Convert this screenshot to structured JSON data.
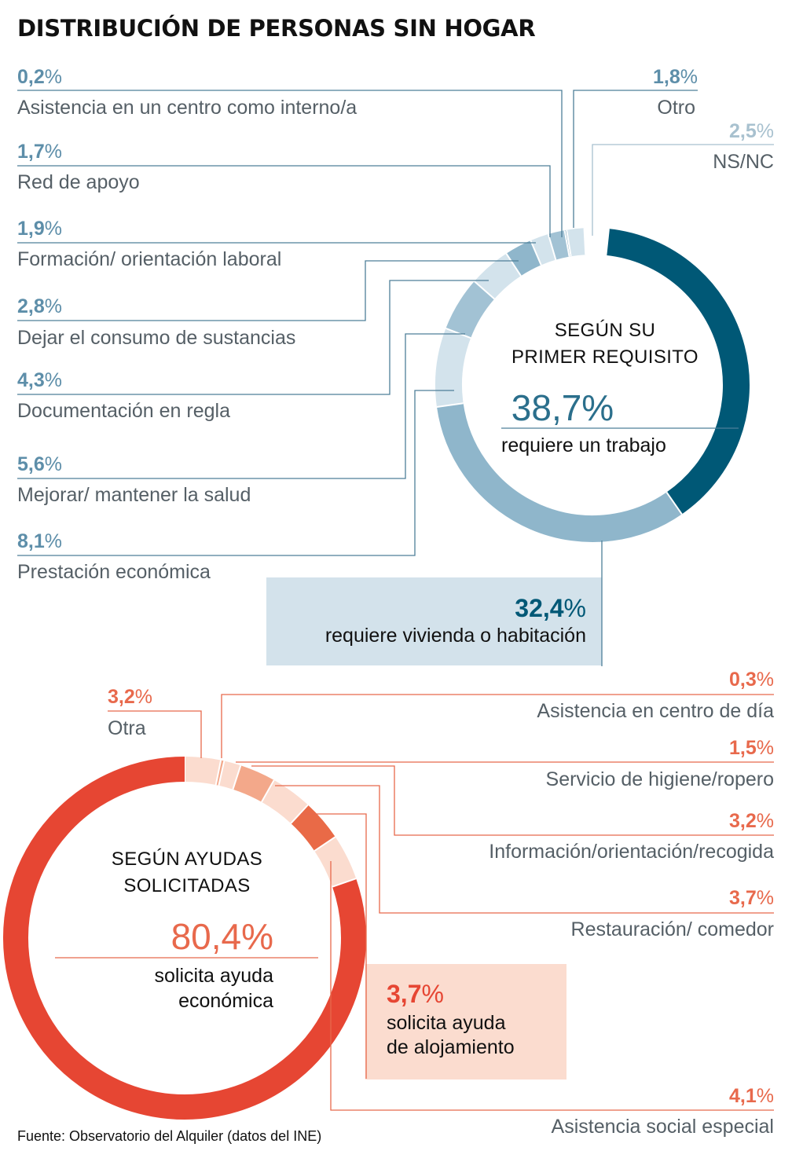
{
  "title": "DISTRIBUCIÓN DE PERSONAS SIN HOGAR",
  "source": "Fuente: Observatorio del Alquiler (datos del INE)",
  "chart_data": [
    {
      "type": "pie",
      "donut": true,
      "center": {
        "title_lines": [
          "SEGÚN SU",
          "PRIMER REQUISITO"
        ],
        "value": "38,7%",
        "caption": "requiere un trabajo"
      },
      "highlight": {
        "value": "32,4%",
        "caption": "requiere vivienda o habitación"
      },
      "slices": [
        {
          "label": "requiere un trabajo",
          "value": 38.7,
          "color": "#005876"
        },
        {
          "label": "requiere vivienda o habitación",
          "value": 32.4,
          "color": "#8fb6cb"
        },
        {
          "label": "Prestación económica",
          "value": 8.1,
          "color": "#d3e3ec"
        },
        {
          "label": "Mejorar/ mantener la salud",
          "value": 5.6,
          "color": "#a2c2d4"
        },
        {
          "label": "Documentación en regla",
          "value": 4.3,
          "color": "#d3e3ec"
        },
        {
          "label": "Dejar el consumo de sustancias",
          "value": 2.8,
          "color": "#8fb6cb"
        },
        {
          "label": "Formación/ orientación laboral",
          "value": 1.9,
          "color": "#d3e3ec"
        },
        {
          "label": "Red de apoyo",
          "value": 1.7,
          "color": "#a2c2d4"
        },
        {
          "label": "Asistencia en un centro como interno/a",
          "value": 0.2,
          "color": "#5d8ea9"
        },
        {
          "label": "Otro",
          "value": 1.8,
          "color": "#d3e3ec"
        },
        {
          "label": "NS/NC",
          "value": 2.5,
          "color": "#ffffff"
        }
      ],
      "labels": [
        {
          "pct": "0,2",
          "text": "Asistencia en un centro como interno/a"
        },
        {
          "pct": "1,7",
          "text": "Red de apoyo"
        },
        {
          "pct": "1,9",
          "text": "Formación/ orientación laboral"
        },
        {
          "pct": "2,8",
          "text": "Dejar el consumo de sustancias"
        },
        {
          "pct": "4,3",
          "text": "Documentación en regla"
        },
        {
          "pct": "5,6",
          "text": "Mejorar/ mantener la salud"
        },
        {
          "pct": "8,1",
          "text": "Prestación económica"
        },
        {
          "pct": "1,8",
          "text": "Otro"
        },
        {
          "pct": "2,5",
          "text": "NS/NC"
        }
      ],
      "pct_color": "#5d8ea9",
      "nsnc_color": "#a8c1cf"
    },
    {
      "type": "pie",
      "donut": true,
      "center": {
        "title_lines": [
          "SEGÚN AYUDAS",
          "SOLICITADAS"
        ],
        "value": "80,4%",
        "caption_lines": [
          "solicita ayuda",
          "económica"
        ]
      },
      "highlight": {
        "value": "3,7%",
        "caption_lines": [
          "solicita ayuda",
          "de alojamiento"
        ]
      },
      "slices": [
        {
          "label": "Otra",
          "value": 3.2,
          "color": "#fbdccf"
        },
        {
          "label": "Asistencia en centro de día",
          "value": 0.3,
          "color": "#f3a88a"
        },
        {
          "label": "Servicio de higiene/ropero",
          "value": 1.5,
          "color": "#fbdccf"
        },
        {
          "label": "Información/orientación/recogida",
          "value": 3.2,
          "color": "#f3a88a"
        },
        {
          "label": "Restauración/ comedor",
          "value": 3.7,
          "color": "#fbdccf"
        },
        {
          "label": "solicita ayuda de alojamiento",
          "value": 3.7,
          "color": "#e96a47"
        },
        {
          "label": "Asistencia social especial",
          "value": 4.1,
          "color": "#fbdccf"
        },
        {
          "label": "solicita ayuda económica",
          "value": 80.4,
          "color": "#e64633"
        }
      ],
      "labels": [
        {
          "pct": "3,2",
          "text": "Otra"
        },
        {
          "pct": "0,3",
          "text": "Asistencia en centro de día"
        },
        {
          "pct": "1,5",
          "text": "Servicio de higiene/ropero"
        },
        {
          "pct": "3,2",
          "text": "Información/orientación/recogida"
        },
        {
          "pct": "3,7",
          "text": "Restauración/ comedor"
        },
        {
          "pct": "4,1",
          "text": "Asistencia social especial"
        }
      ],
      "pct_color": "#e8694c",
      "accent_color": "#e64633"
    }
  ]
}
